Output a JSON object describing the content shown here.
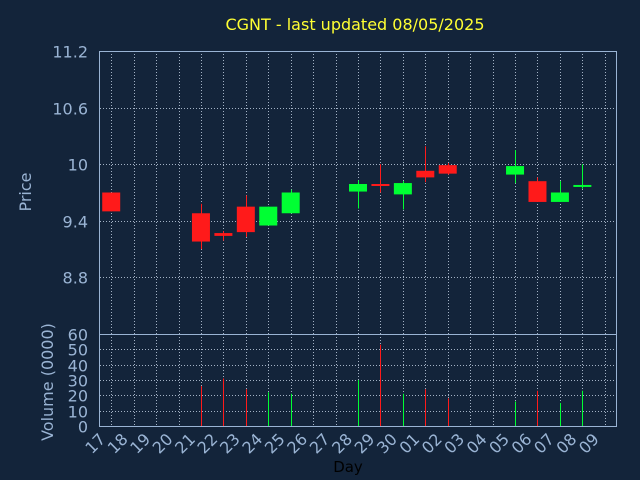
{
  "chart_data": {
    "type": "candlestick",
    "title": "CGNT - last updated 08/05/2025",
    "xlabel": "Day",
    "price_panel": {
      "ylabel": "Price",
      "ylim": [
        8.2,
        11.2
      ],
      "yticks": [
        "11.2",
        "10.6",
        "10",
        "9.4",
        "8.8"
      ],
      "grid": true
    },
    "volume_panel": {
      "ylabel": "Volume (0000)",
      "ylim": [
        0,
        60
      ],
      "yticks": [
        "60",
        "50",
        "40",
        "30",
        "20",
        "10",
        "0"
      ],
      "grid": true
    },
    "x_ticks": [
      "17",
      "18",
      "19",
      "20",
      "21",
      "22",
      "23",
      "24",
      "25",
      "26",
      "27",
      "28",
      "29",
      "30",
      "01",
      "02",
      "03",
      "04",
      "05",
      "06",
      "07",
      "08",
      "09"
    ],
    "candles": [
      {
        "day": "17",
        "open": 9.7,
        "high": 9.7,
        "low": 9.5,
        "close": 9.5,
        "volume": 0
      },
      {
        "day": "21",
        "open": 9.48,
        "high": 9.58,
        "low": 9.1,
        "close": 9.18,
        "volume": 26
      },
      {
        "day": "22",
        "open": 9.27,
        "high": 9.29,
        "low": 9.19,
        "close": 9.24,
        "volume": 31
      },
      {
        "day": "23",
        "open": 9.55,
        "high": 9.67,
        "low": 9.23,
        "close": 9.28,
        "volume": 24
      },
      {
        "day": "24",
        "open": 9.35,
        "high": 9.55,
        "low": 9.35,
        "close": 9.55,
        "volume": 22
      },
      {
        "day": "25",
        "open": 9.48,
        "high": 9.73,
        "low": 9.48,
        "close": 9.7,
        "volume": 21
      },
      {
        "day": "28",
        "open": 9.71,
        "high": 9.83,
        "low": 9.53,
        "close": 9.79,
        "volume": 30
      },
      {
        "day": "29",
        "open": 9.79,
        "high": 10.0,
        "low": 9.7,
        "close": 9.78,
        "volume": 53
      },
      {
        "day": "30",
        "open": 9.68,
        "high": 9.82,
        "low": 9.52,
        "close": 9.8,
        "volume": 21
      },
      {
        "day": "01",
        "open": 9.93,
        "high": 10.19,
        "low": 9.81,
        "close": 9.86,
        "volume": 24
      },
      {
        "day": "02",
        "open": 9.99,
        "high": 10.01,
        "low": 9.89,
        "close": 9.9,
        "volume": 18
      },
      {
        "day": "05",
        "open": 9.89,
        "high": 10.15,
        "low": 9.8,
        "close": 9.98,
        "volume": 16
      },
      {
        "day": "06",
        "open": 9.82,
        "high": 9.86,
        "low": 9.6,
        "close": 9.6,
        "volume": 23
      },
      {
        "day": "07",
        "open": 9.6,
        "high": 9.82,
        "low": 9.6,
        "close": 9.7,
        "volume": 15
      },
      {
        "day": "08",
        "open": 9.77,
        "high": 10.0,
        "low": 9.74,
        "close": 9.78,
        "volume": 23
      }
    ],
    "colors": {
      "up": "#00ff33",
      "down": "#ff1a1a",
      "background": "#13243a"
    }
  }
}
